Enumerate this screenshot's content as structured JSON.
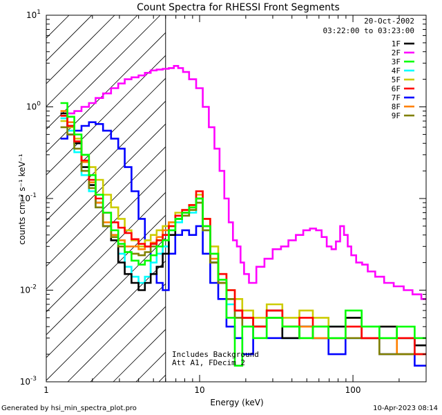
{
  "chart_data": {
    "type": "line",
    "title": "Count Spectra for RHESSI Front Segments",
    "xlabel": "Energy (keV)",
    "ylabel": "counts cm⁻² s⁻¹ keV⁻¹",
    "xscale": "log",
    "yscale": "log",
    "xlim": [
      1,
      300
    ],
    "ylim": [
      0.001,
      10
    ],
    "x_ticks": [
      {
        "value": 1,
        "label": "1"
      },
      {
        "value": 10,
        "label": "10"
      },
      {
        "value": 100,
        "label": "100"
      }
    ],
    "y_ticks": [
      {
        "value": 10,
        "label": "10",
        "exp": "1"
      },
      {
        "value": 1,
        "label": "10",
        "exp": "0"
      },
      {
        "value": 0.1,
        "label": "10",
        "exp": "-1"
      },
      {
        "value": 0.01,
        "label": "10",
        "exp": "-2"
      },
      {
        "value": 0.001,
        "label": "10",
        "exp": "-3"
      }
    ],
    "legend_position": "top-right",
    "date": "20-Oct-2002",
    "time_range": "03:22:00 to 03:23:00",
    "shaded_region": {
      "x_from": 1,
      "x_to": 6,
      "pattern": "diagonal hatch"
    },
    "annotations": [
      "Includes Background",
      "Att A1, FDecim 2"
    ],
    "series": [
      {
        "name": "1F",
        "color": "#000000",
        "x": [
          1.3,
          1.45,
          1.6,
          1.8,
          2.0,
          2.2,
          2.5,
          2.8,
          3.1,
          3.4,
          3.8,
          4.2,
          4.6,
          5.0,
          5.5,
          6.0,
          6.6,
          7.3,
          8.1,
          9.0,
          10.0,
          11.0,
          12.5,
          14.0,
          16.0,
          18.0,
          20.0,
          25.0,
          30.0,
          40.0,
          50.0,
          60.0,
          80.0,
          100.0,
          130.0,
          170.0,
          220.0,
          290.0
        ],
        "values": [
          0.85,
          0.62,
          0.4,
          0.22,
          0.14,
          0.09,
          0.05,
          0.035,
          0.02,
          0.015,
          0.012,
          0.01,
          0.012,
          0.015,
          0.018,
          0.025,
          0.04,
          0.06,
          0.07,
          0.08,
          0.1,
          0.05,
          0.02,
          0.012,
          0.008,
          0.006,
          0.005,
          0.004,
          0.006,
          0.003,
          0.004,
          0.003,
          0.004,
          0.005,
          0.003,
          0.004,
          0.003,
          0.0025
        ]
      },
      {
        "name": "2F",
        "color": "#ff00ff",
        "x": [
          1.3,
          1.45,
          1.6,
          1.8,
          2.0,
          2.2,
          2.5,
          2.8,
          3.1,
          3.4,
          3.8,
          4.2,
          4.6,
          5.0,
          5.5,
          6.0,
          6.6,
          7.0,
          7.5,
          8.1,
          9.0,
          10.0,
          11.0,
          12.0,
          13.0,
          14.0,
          15.0,
          16.0,
          17.0,
          18.0,
          19.0,
          20.0,
          22.0,
          25.0,
          28.0,
          32.0,
          36.0,
          40.0,
          45.0,
          50.0,
          55.0,
          60.0,
          65.0,
          70.0,
          75.0,
          80.0,
          85.0,
          90.0,
          95.0,
          100.0,
          110.0,
          120.0,
          130.0,
          150.0,
          170.0,
          200.0,
          230.0,
          260.0,
          300.0
        ],
        "values": [
          0.8,
          0.85,
          0.9,
          1.0,
          1.1,
          1.25,
          1.4,
          1.6,
          1.8,
          2.0,
          2.1,
          2.2,
          2.35,
          2.5,
          2.55,
          2.6,
          2.65,
          2.8,
          2.65,
          2.4,
          2.0,
          1.6,
          1.0,
          0.6,
          0.35,
          0.2,
          0.1,
          0.055,
          0.035,
          0.03,
          0.02,
          0.015,
          0.012,
          0.018,
          0.022,
          0.028,
          0.03,
          0.035,
          0.04,
          0.045,
          0.047,
          0.045,
          0.038,
          0.03,
          0.028,
          0.034,
          0.05,
          0.04,
          0.03,
          0.024,
          0.02,
          0.019,
          0.016,
          0.014,
          0.012,
          0.011,
          0.01,
          0.009,
          0.008
        ]
      },
      {
        "name": "3F",
        "color": "#00ff00",
        "x": [
          1.3,
          1.45,
          1.6,
          1.8,
          2.0,
          2.2,
          2.5,
          2.8,
          3.1,
          3.4,
          3.8,
          4.2,
          4.6,
          5.0,
          5.5,
          6.0,
          6.6,
          7.3,
          8.1,
          9.0,
          10.0,
          11.0,
          12.5,
          14.0,
          16.0,
          18.0,
          20.0,
          25.0,
          30.0,
          40.0,
          50.0,
          60.0,
          80.0,
          100.0,
          130.0,
          170.0,
          220.0,
          290.0
        ],
        "values": [
          1.1,
          0.78,
          0.5,
          0.3,
          0.18,
          0.11,
          0.07,
          0.045,
          0.032,
          0.026,
          0.021,
          0.019,
          0.021,
          0.024,
          0.03,
          0.035,
          0.045,
          0.06,
          0.07,
          0.08,
          0.1,
          0.05,
          0.025,
          0.013,
          0.005,
          0.0015,
          0.004,
          0.003,
          0.005,
          0.004,
          0.003,
          0.004,
          0.003,
          0.006,
          0.004,
          0.003,
          0.004,
          0.003
        ]
      },
      {
        "name": "4F",
        "color": "#00ffff",
        "x": [
          1.3,
          1.45,
          1.6,
          1.8,
          2.0,
          2.2,
          2.5,
          2.8,
          3.1,
          3.4,
          3.8,
          4.2,
          4.6,
          5.0,
          5.5,
          6.0,
          6.6,
          7.3,
          8.1,
          9.0,
          10.0,
          11.0,
          12.5,
          14.0,
          16.0,
          18.0,
          20.0,
          25.0,
          30.0,
          40.0,
          50.0,
          60.0,
          80.0,
          100.0,
          130.0,
          170.0,
          220.0,
          290.0
        ],
        "values": [
          0.75,
          0.55,
          0.32,
          0.18,
          0.12,
          0.08,
          0.05,
          0.04,
          0.025,
          0.018,
          0.014,
          0.012,
          0.014,
          0.02,
          0.025,
          0.03,
          0.045,
          0.055,
          0.065,
          0.07,
          0.09,
          0.045,
          0.02,
          0.012,
          0.007,
          0.005,
          0.004,
          0.004,
          0.005,
          0.003,
          0.004,
          0.003,
          0.004,
          0.003,
          0.004,
          0.003,
          0.003,
          0.002
        ]
      },
      {
        "name": "5F",
        "color": "#cccc00",
        "x": [
          1.3,
          1.45,
          1.6,
          1.8,
          2.0,
          2.2,
          2.5,
          2.8,
          3.1,
          3.4,
          3.8,
          4.2,
          4.6,
          5.0,
          5.5,
          6.0,
          6.6,
          7.3,
          8.1,
          9.0,
          10.0,
          11.0,
          12.5,
          14.0,
          16.0,
          18.0,
          20.0,
          25.0,
          30.0,
          40.0,
          50.0,
          60.0,
          80.0,
          100.0,
          130.0,
          170.0,
          220.0,
          290.0
        ],
        "values": [
          0.7,
          0.6,
          0.45,
          0.3,
          0.22,
          0.16,
          0.11,
          0.08,
          0.06,
          0.045,
          0.035,
          0.03,
          0.035,
          0.04,
          0.045,
          0.05,
          0.055,
          0.07,
          0.075,
          0.085,
          0.11,
          0.06,
          0.03,
          0.015,
          0.01,
          0.008,
          0.006,
          0.005,
          0.007,
          0.005,
          0.006,
          0.005,
          0.004,
          0.005,
          0.004,
          0.004,
          0.003,
          0.003
        ]
      },
      {
        "name": "6F",
        "color": "#ff0000",
        "x": [
          1.3,
          1.45,
          1.6,
          1.8,
          2.0,
          2.2,
          2.5,
          2.8,
          3.1,
          3.4,
          3.8,
          4.2,
          4.6,
          5.0,
          5.5,
          6.0,
          6.6,
          7.3,
          8.1,
          9.0,
          10.0,
          11.0,
          12.5,
          14.0,
          16.0,
          18.0,
          20.0,
          25.0,
          30.0,
          40.0,
          50.0,
          60.0,
          80.0,
          100.0,
          130.0,
          170.0,
          220.0,
          290.0
        ],
        "values": [
          0.8,
          0.62,
          0.42,
          0.26,
          0.16,
          0.1,
          0.07,
          0.055,
          0.048,
          0.042,
          0.036,
          0.032,
          0.03,
          0.032,
          0.035,
          0.04,
          0.05,
          0.065,
          0.075,
          0.085,
          0.12,
          0.06,
          0.025,
          0.015,
          0.01,
          0.006,
          0.005,
          0.004,
          0.006,
          0.004,
          0.005,
          0.004,
          0.003,
          0.004,
          0.003,
          0.003,
          0.003,
          0.002
        ]
      },
      {
        "name": "7F",
        "color": "#0000ff",
        "x": [
          1.3,
          1.45,
          1.6,
          1.8,
          2.0,
          2.2,
          2.5,
          2.8,
          3.1,
          3.4,
          3.8,
          4.2,
          4.6,
          5.0,
          5.5,
          6.0,
          6.6,
          7.3,
          8.1,
          9.0,
          10.0,
          11.0,
          12.5,
          14.0,
          16.0,
          18.0,
          20.0,
          25.0,
          30.0,
          40.0,
          50.0,
          60.0,
          80.0,
          100.0,
          130.0,
          170.0,
          220.0,
          290.0
        ],
        "values": [
          0.45,
          0.5,
          0.55,
          0.62,
          0.68,
          0.65,
          0.55,
          0.45,
          0.35,
          0.22,
          0.12,
          0.06,
          0.03,
          0.015,
          0.012,
          0.01,
          0.025,
          0.04,
          0.045,
          0.04,
          0.05,
          0.025,
          0.012,
          0.008,
          0.004,
          0.003,
          0.002,
          0.004,
          0.003,
          0.003,
          0.004,
          0.003,
          0.002,
          0.003,
          0.003,
          0.002,
          0.002,
          0.0015
        ]
      },
      {
        "name": "8F",
        "color": "#ff8000",
        "x": [
          1.3,
          1.45,
          1.6,
          1.8,
          2.0,
          2.2,
          2.5,
          2.8,
          3.1,
          3.4,
          3.8,
          4.2,
          4.6,
          5.0,
          5.5,
          6.0,
          6.6,
          7.3,
          8.1,
          9.0,
          10.0,
          11.0,
          12.5,
          14.0,
          16.0,
          18.0,
          20.0,
          25.0,
          30.0,
          40.0,
          50.0,
          60.0,
          80.0,
          100.0,
          130.0,
          170.0,
          220.0,
          290.0
        ],
        "values": [
          0.9,
          0.68,
          0.42,
          0.25,
          0.15,
          0.09,
          0.055,
          0.04,
          0.035,
          0.03,
          0.03,
          0.028,
          0.03,
          0.033,
          0.038,
          0.045,
          0.055,
          0.065,
          0.07,
          0.08,
          0.1,
          0.05,
          0.022,
          0.012,
          0.008,
          0.006,
          0.005,
          0.004,
          0.005,
          0.004,
          0.004,
          0.003,
          0.003,
          0.004,
          0.003,
          0.003,
          0.002,
          0.002
        ]
      },
      {
        "name": "9F",
        "color": "#808000",
        "x": [
          1.3,
          1.45,
          1.6,
          1.8,
          2.0,
          2.2,
          2.5,
          2.8,
          3.1,
          3.4,
          3.8,
          4.2,
          4.6,
          5.0,
          5.5,
          6.0,
          6.6,
          7.3,
          8.1,
          9.0,
          10.0,
          11.0,
          12.5,
          14.0,
          16.0,
          18.0,
          20.0,
          25.0,
          30.0,
          40.0,
          50.0,
          60.0,
          80.0,
          100.0,
          130.0,
          170.0,
          220.0,
          290.0
        ],
        "values": [
          0.6,
          0.5,
          0.35,
          0.2,
          0.13,
          0.08,
          0.05,
          0.038,
          0.03,
          0.026,
          0.025,
          0.024,
          0.026,
          0.03,
          0.035,
          0.04,
          0.05,
          0.06,
          0.065,
          0.075,
          0.09,
          0.045,
          0.02,
          0.012,
          0.008,
          0.005,
          0.004,
          0.004,
          0.005,
          0.004,
          0.003,
          0.004,
          0.003,
          0.003,
          0.003,
          0.002,
          0.002,
          0.002
        ]
      }
    ]
  },
  "footer": {
    "generated_by": "Generated by hsi_min_spectra_plot.pro",
    "timestamp": "10-Apr-2023 08:14"
  }
}
